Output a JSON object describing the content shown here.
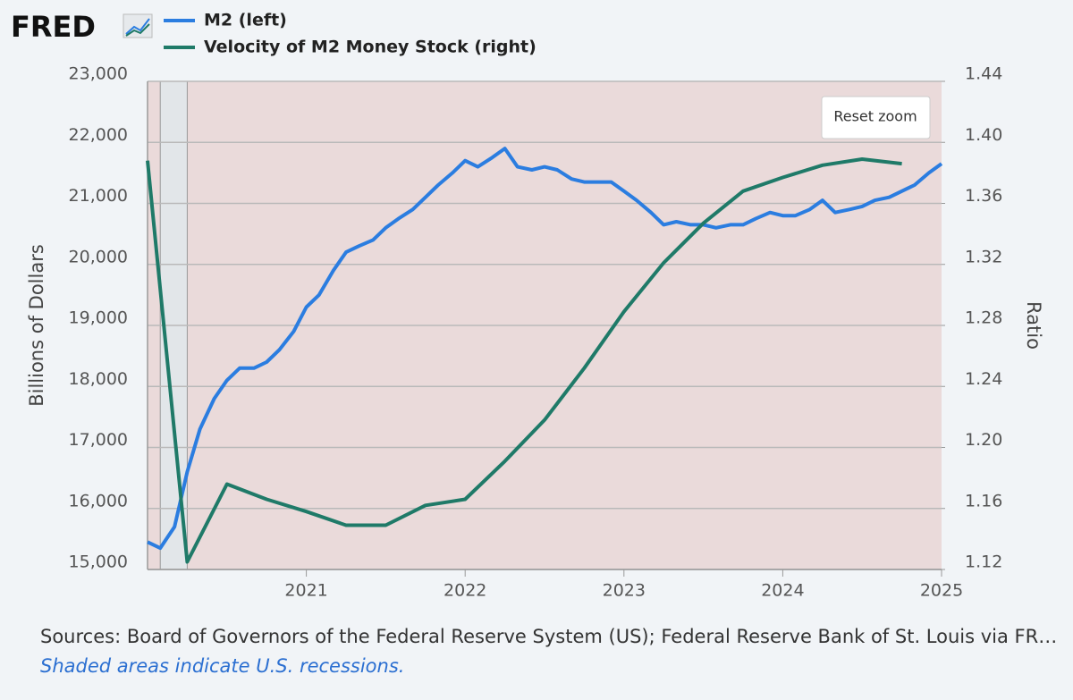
{
  "logo": "FRED",
  "reset_zoom": "Reset zoom",
  "sources": "Sources: Board of Governors of the Federal Reserve System (US); Federal Reserve Bank of St. Louis via FR…",
  "note": "Shaded areas indicate U.S. recessions.",
  "chart_data": {
    "type": "line",
    "ylabel": "Billions of Dollars",
    "y2label": "Ratio",
    "xlim": [
      2020,
      2025
    ],
    "xticks": [
      2021,
      2022,
      2023,
      2024,
      2025
    ],
    "ylim": [
      15000,
      23000
    ],
    "yticks": [
      {
        "value": 15000,
        "label": "15,000"
      },
      {
        "value": 16000,
        "label": "16,000"
      },
      {
        "value": 17000,
        "label": "17,000"
      },
      {
        "value": 18000,
        "label": "18,000"
      },
      {
        "value": 19000,
        "label": "19,000"
      },
      {
        "value": 20000,
        "label": "20,000"
      },
      {
        "value": 21000,
        "label": "21,000"
      },
      {
        "value": 22000,
        "label": "22,000"
      },
      {
        "value": 23000,
        "label": "23,000"
      }
    ],
    "y2lim": [
      1.12,
      1.44
    ],
    "y2ticks": [
      1.12,
      1.16,
      {
        "value": 1.2,
        "label": "1.20"
      },
      1.24,
      1.28,
      1.32,
      1.36,
      {
        "value": 1.4,
        "label": "1.40"
      },
      1.44
    ],
    "grid": true,
    "recession": [
      2020.08,
      2020.25
    ],
    "series": [
      {
        "name": "M2 (left)",
        "color": "#2b7de0",
        "axis": "y",
        "x": [
          2020,
          2020.08,
          2020.17,
          2020.25,
          2020.33,
          2020.42,
          2020.5,
          2020.58,
          2020.67,
          2020.75,
          2020.83,
          2020.92,
          2021,
          2021.08,
          2021.17,
          2021.25,
          2021.33,
          2021.42,
          2021.5,
          2021.58,
          2021.67,
          2021.75,
          2021.83,
          2021.92,
          2022,
          2022.08,
          2022.17,
          2022.25,
          2022.33,
          2022.42,
          2022.5,
          2022.58,
          2022.67,
          2022.75,
          2022.83,
          2022.92,
          2023,
          2023.08,
          2023.17,
          2023.25,
          2023.33,
          2023.42,
          2023.5,
          2023.58,
          2023.67,
          2023.75,
          2023.83,
          2023.92,
          2024,
          2024.08,
          2024.17,
          2024.25,
          2024.33,
          2024.42,
          2024.5,
          2024.58,
          2024.67,
          2024.75,
          2024.83,
          2024.92,
          2025
        ],
        "values": [
          15450,
          15350,
          15700,
          16600,
          17300,
          17800,
          18100,
          18300,
          18300,
          18400,
          18600,
          18900,
          19300,
          19500,
          19900,
          20200,
          20300,
          20400,
          20600,
          20750,
          20900,
          21100,
          21300,
          21500,
          21700,
          21600,
          21750,
          21900,
          21600,
          21550,
          21600,
          21550,
          21400,
          21350,
          21350,
          21350,
          21200,
          21050,
          20850,
          20650,
          20700,
          20650,
          20650,
          20600,
          20650,
          20650,
          20750,
          20850,
          20800,
          20800,
          20900,
          21050,
          20850,
          20900,
          20950,
          21050,
          21100,
          21200,
          21300,
          21500,
          21650
        ]
      },
      {
        "name": "Velocity of M2 Money Stock (right)",
        "color": "#1f7a68",
        "axis": "y2",
        "x": [
          2020,
          2020.25,
          2020.5,
          2020.75,
          2021,
          2021.25,
          2021.5,
          2021.75,
          2022,
          2022.25,
          2022.5,
          2022.75,
          2023,
          2023.25,
          2023.5,
          2023.75,
          2024,
          2024.25,
          2024.5,
          2024.75
        ],
        "values": [
          1.388,
          1.125,
          1.176,
          1.166,
          1.158,
          1.149,
          1.149,
          1.162,
          1.166,
          1.191,
          1.218,
          1.252,
          1.289,
          1.321,
          1.347,
          1.368,
          1.377,
          1.385,
          1.389,
          1.386
        ]
      }
    ]
  }
}
